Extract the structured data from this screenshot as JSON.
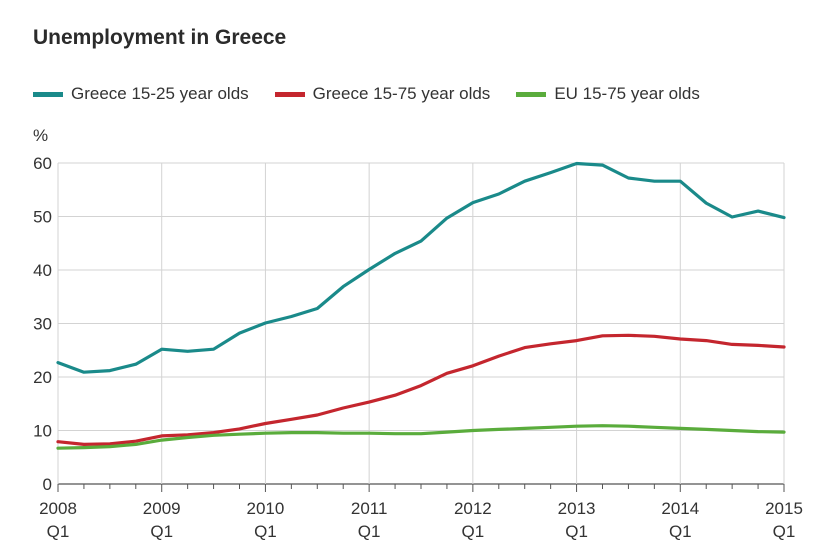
{
  "chart_data": {
    "type": "line",
    "title": "Unemployment in Greece",
    "ylabel": "%",
    "xlabel": "",
    "ylim": [
      0,
      60
    ],
    "yticks": [
      0,
      10,
      20,
      30,
      40,
      50,
      60
    ],
    "x_tick_labels": [
      {
        "year": "2008",
        "quarter": "Q1"
      },
      {
        "year": "2009",
        "quarter": "Q1"
      },
      {
        "year": "2010",
        "quarter": "Q1"
      },
      {
        "year": "2011",
        "quarter": "Q1"
      },
      {
        "year": "2012",
        "quarter": "Q1"
      },
      {
        "year": "2013",
        "quarter": "Q1"
      },
      {
        "year": "2014",
        "quarter": "Q1"
      },
      {
        "year": "2015",
        "quarter": "Q1"
      }
    ],
    "grid": true,
    "legend_position": "top",
    "x": [
      "2008 Q1",
      "2008 Q2",
      "2008 Q3",
      "2008 Q4",
      "2009 Q1",
      "2009 Q2",
      "2009 Q3",
      "2009 Q4",
      "2010 Q1",
      "2010 Q2",
      "2010 Q3",
      "2010 Q4",
      "2011 Q1",
      "2011 Q2",
      "2011 Q3",
      "2011 Q4",
      "2012 Q1",
      "2012 Q2",
      "2012 Q3",
      "2012 Q4",
      "2013 Q1",
      "2013 Q2",
      "2013 Q3",
      "2013 Q4",
      "2014 Q1",
      "2014 Q2",
      "2014 Q3",
      "2014 Q4",
      "2015 Q1"
    ],
    "series": [
      {
        "name": "Greece 15-25 year olds",
        "color": "#1a8a8a",
        "values": [
          22.7,
          20.9,
          21.2,
          22.4,
          25.2,
          24.8,
          25.2,
          28.2,
          30.1,
          31.3,
          32.8,
          36.9,
          40.1,
          43.1,
          45.4,
          49.7,
          52.6,
          54.2,
          56.6,
          58.2,
          59.9,
          59.6,
          57.2,
          56.6,
          56.6,
          52.5,
          49.9,
          51.0,
          49.8
        ]
      },
      {
        "name": "Greece 15-75 year olds",
        "color": "#c4262e",
        "values": [
          7.9,
          7.4,
          7.5,
          8.0,
          9.0,
          9.2,
          9.6,
          10.3,
          11.3,
          12.1,
          12.9,
          14.2,
          15.3,
          16.6,
          18.4,
          20.7,
          22.1,
          23.9,
          25.5,
          26.2,
          26.8,
          27.7,
          27.8,
          27.6,
          27.1,
          26.8,
          26.1,
          25.9,
          25.6
        ]
      },
      {
        "name": "EU 15-75 year olds",
        "color": "#5aac3c",
        "values": [
          6.7,
          6.8,
          7.0,
          7.4,
          8.2,
          8.7,
          9.1,
          9.3,
          9.5,
          9.6,
          9.6,
          9.5,
          9.5,
          9.4,
          9.4,
          9.7,
          10.0,
          10.2,
          10.4,
          10.6,
          10.8,
          10.9,
          10.8,
          10.6,
          10.4,
          10.2,
          10.0,
          9.8,
          9.7
        ]
      }
    ]
  }
}
